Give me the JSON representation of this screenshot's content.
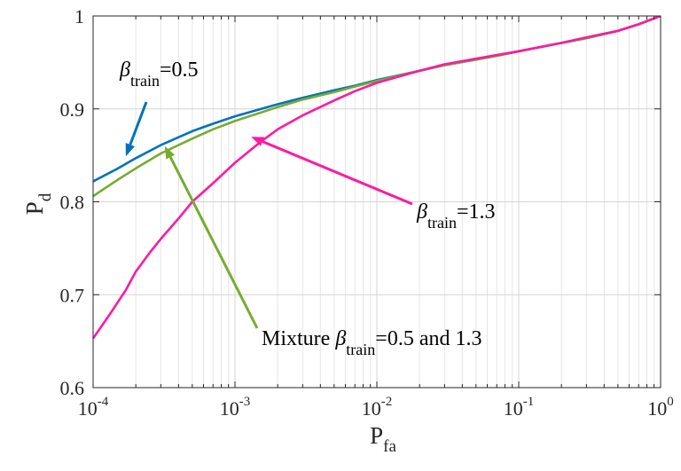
{
  "chart_data": {
    "type": "line",
    "x_scale": "log",
    "xlim": [
      0.0001,
      1
    ],
    "ylim": [
      0.6,
      1
    ],
    "grid": true,
    "xlabel": {
      "main": "P",
      "sub": "fa"
    },
    "ylabel": {
      "main": "P",
      "sub": "d"
    },
    "xticks": [
      {
        "base": "10",
        "exp": "-4",
        "value": 0.0001
      },
      {
        "base": "10",
        "exp": "-3",
        "value": 0.001
      },
      {
        "base": "10",
        "exp": "-2",
        "value": 0.01
      },
      {
        "base": "10",
        "exp": "-1",
        "value": 0.1
      },
      {
        "base": "10",
        "exp": "0",
        "value": 1
      }
    ],
    "yticks": [
      {
        "label": "0.6",
        "value": 0.6
      },
      {
        "label": "0.7",
        "value": 0.7
      },
      {
        "label": "0.8",
        "value": 0.8
      },
      {
        "label": "0.9",
        "value": 0.9
      },
      {
        "label": "1",
        "value": 1
      }
    ],
    "series": [
      {
        "key": "beta05",
        "color": "#0072BD",
        "x": [
          0.0001,
          0.00015,
          0.0002,
          0.0003,
          0.0005,
          0.0007,
          0.001,
          0.002,
          0.003,
          0.005,
          0.007,
          0.01,
          0.02,
          0.03,
          0.05,
          0.07,
          0.1,
          0.2,
          0.3,
          0.5,
          0.7,
          1
        ],
        "y": [
          0.822,
          0.836,
          0.847,
          0.861,
          0.876,
          0.884,
          0.892,
          0.905,
          0.912,
          0.92,
          0.925,
          0.931,
          0.941,
          0.947,
          0.953,
          0.957,
          0.962,
          0.971,
          0.976,
          0.984,
          0.991,
          1.0
        ]
      },
      {
        "key": "mixture",
        "color": "#77AC30",
        "x": [
          0.0001,
          0.00015,
          0.0002,
          0.0003,
          0.0005,
          0.0007,
          0.001,
          0.002,
          0.003,
          0.005,
          0.007,
          0.01,
          0.02,
          0.03,
          0.05,
          0.07,
          0.1,
          0.2,
          0.3,
          0.5,
          0.7,
          1
        ],
        "y": [
          0.806,
          0.824,
          0.836,
          0.852,
          0.868,
          0.878,
          0.887,
          0.902,
          0.91,
          0.918,
          0.924,
          0.93,
          0.941,
          0.947,
          0.953,
          0.957,
          0.962,
          0.971,
          0.976,
          0.984,
          0.991,
          1.0
        ]
      },
      {
        "key": "beta13",
        "color": "#FF1A9E",
        "x": [
          0.0001,
          0.00013,
          0.00017,
          0.0002,
          0.00025,
          0.0003,
          0.0004,
          0.0005,
          0.0007,
          0.001,
          0.0015,
          0.002,
          0.003,
          0.005,
          0.007,
          0.01,
          0.02,
          0.03,
          0.05,
          0.07,
          0.1,
          0.2,
          0.3,
          0.5,
          0.7,
          1
        ],
        "y": [
          0.653,
          0.678,
          0.705,
          0.725,
          0.745,
          0.76,
          0.782,
          0.8,
          0.82,
          0.842,
          0.864,
          0.878,
          0.893,
          0.909,
          0.919,
          0.928,
          0.941,
          0.948,
          0.954,
          0.958,
          0.962,
          0.971,
          0.977,
          0.984,
          0.991,
          1.0
        ]
      }
    ],
    "annotations": [
      {
        "key": "ann1",
        "prefix": "",
        "beta": "β",
        "sub": "train",
        "suffix": "=0.5",
        "color": "#0072BD",
        "target": [
          0.00017,
          0.849
        ]
      },
      {
        "key": "ann2",
        "prefix": "",
        "beta": "β",
        "sub": "train",
        "suffix": "=1.3",
        "color": "#FF1A9E",
        "target": [
          0.0013,
          0.87
        ]
      },
      {
        "key": "ann3",
        "prefix": "Mixture ",
        "beta": "β",
        "sub": "train",
        "suffix": "=0.5 and 1.3",
        "color": "#77AC30",
        "target": [
          0.00032,
          0.86
        ]
      }
    ]
  }
}
